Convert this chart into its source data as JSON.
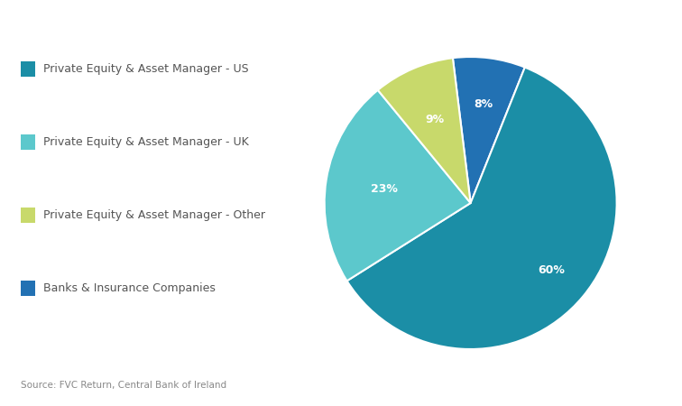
{
  "labels": [
    "Private Equity & Asset Manager - US",
    "Private Equity & Asset Manager - UK",
    "Private Equity & Asset Manager - Other",
    "Banks & Insurance Companies"
  ],
  "values": [
    60,
    23,
    9,
    8
  ],
  "colors": [
    "#1b8ea6",
    "#5cc8cc",
    "#c8d96b",
    "#2271b3"
  ],
  "pct_labels": [
    "60%",
    "23%",
    "9%",
    "8%"
  ],
  "source": "Source: FVC Return, Central Bank of Ireland",
  "background_color": "#ffffff",
  "legend_marker_colors": [
    "#1b8ea6",
    "#5cc8cc",
    "#c8d96b",
    "#2271b3"
  ],
  "text_color": "#666666",
  "label_pct_color_dark": [
    "white",
    "white",
    "white",
    "white"
  ]
}
